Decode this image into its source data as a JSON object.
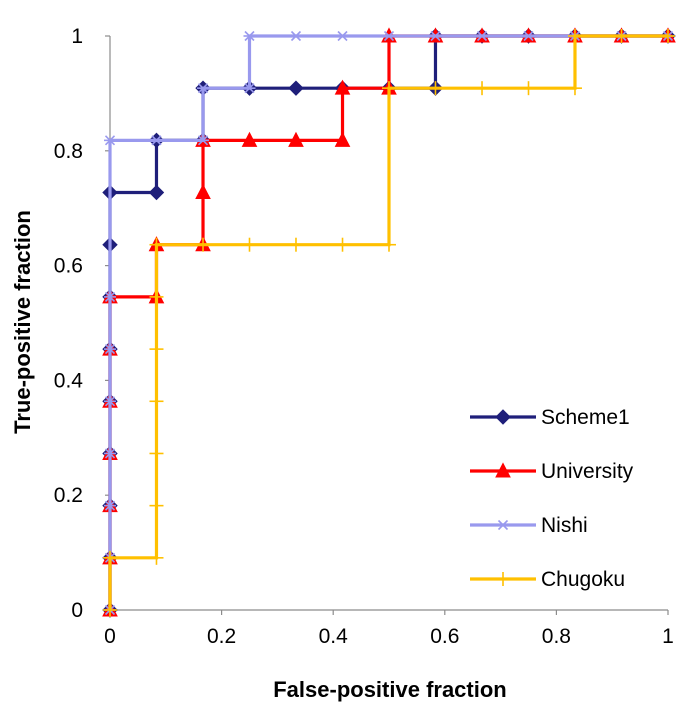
{
  "chart_data": {
    "type": "line",
    "title": "",
    "xlabel": "False-positive fraction",
    "ylabel": "True-positive fraction",
    "xlim": [
      0,
      1
    ],
    "ylim": [
      0,
      1
    ],
    "x_ticks": [
      0,
      0.2,
      0.4,
      0.6,
      0.8,
      1
    ],
    "y_ticks": [
      0,
      0.2,
      0.4,
      0.6,
      0.8,
      1
    ],
    "x_tick_labels": [
      "0",
      "0.2",
      "0.4",
      "0.6",
      "0.8",
      "1"
    ],
    "y_tick_labels": [
      "0",
      "0.2",
      "0.4",
      "0.6",
      "0.8",
      "1"
    ],
    "grid": false,
    "legend_position": "bottom-right",
    "series": [
      {
        "name": "Scheme1",
        "color": "#1f1f7a",
        "marker": "diamond",
        "points": [
          [
            0,
            0
          ],
          [
            0,
            0.0909
          ],
          [
            0,
            0.1818
          ],
          [
            0,
            0.2727
          ],
          [
            0,
            0.3636
          ],
          [
            0,
            0.4545
          ],
          [
            0,
            0.5455
          ],
          [
            0,
            0.6364
          ],
          [
            0,
            0.7273
          ],
          [
            0.0833,
            0.7273
          ],
          [
            0.0833,
            0.8182
          ],
          [
            0.1667,
            0.8182
          ],
          [
            0.1667,
            0.9091
          ],
          [
            0.25,
            0.9091
          ],
          [
            0.3333,
            0.9091
          ],
          [
            0.4167,
            0.9091
          ],
          [
            0.5,
            0.9091
          ],
          [
            0.5833,
            0.9091
          ],
          [
            0.5833,
            1
          ],
          [
            0.6667,
            1
          ],
          [
            0.75,
            1
          ],
          [
            0.8333,
            1
          ],
          [
            0.9167,
            1
          ],
          [
            1,
            1
          ]
        ]
      },
      {
        "name": "University",
        "color": "#ff0000",
        "marker": "triangle",
        "points": [
          [
            0,
            0
          ],
          [
            0,
            0.0909
          ],
          [
            0,
            0.1818
          ],
          [
            0,
            0.2727
          ],
          [
            0,
            0.3636
          ],
          [
            0,
            0.4545
          ],
          [
            0,
            0.5455
          ],
          [
            0.0833,
            0.5455
          ],
          [
            0.0833,
            0.6364
          ],
          [
            0.1667,
            0.6364
          ],
          [
            0.1667,
            0.7273
          ],
          [
            0.1667,
            0.8182
          ],
          [
            0.25,
            0.8182
          ],
          [
            0.3333,
            0.8182
          ],
          [
            0.4167,
            0.8182
          ],
          [
            0.4167,
            0.9091
          ],
          [
            0.5,
            0.9091
          ],
          [
            0.5,
            1
          ],
          [
            0.5833,
            1
          ],
          [
            0.6667,
            1
          ],
          [
            0.75,
            1
          ],
          [
            0.8333,
            1
          ],
          [
            0.9167,
            1
          ],
          [
            1,
            1
          ]
        ]
      },
      {
        "name": "Nishi",
        "color": "#9999ee",
        "marker": "star",
        "points": [
          [
            0,
            0
          ],
          [
            0,
            0.0909
          ],
          [
            0,
            0.1818
          ],
          [
            0,
            0.2727
          ],
          [
            0,
            0.3636
          ],
          [
            0,
            0.4545
          ],
          [
            0,
            0.5455
          ],
          [
            0,
            0.8182
          ],
          [
            0.0833,
            0.8182
          ],
          [
            0.1667,
            0.8182
          ],
          [
            0.1667,
            0.9091
          ],
          [
            0.25,
            0.9091
          ],
          [
            0.25,
            1
          ],
          [
            0.3333,
            1
          ],
          [
            0.4167,
            1
          ],
          [
            0.5,
            1
          ],
          [
            0.5833,
            1
          ],
          [
            0.6667,
            1
          ],
          [
            0.75,
            1
          ],
          [
            0.8333,
            1
          ],
          [
            0.9167,
            1
          ],
          [
            1,
            1
          ]
        ]
      },
      {
        "name": "Chugoku",
        "color": "#ffc000",
        "marker": "plus",
        "points": [
          [
            0,
            0
          ],
          [
            0,
            0.0909
          ],
          [
            0.0833,
            0.0909
          ],
          [
            0.0833,
            0.1818
          ],
          [
            0.0833,
            0.2727
          ],
          [
            0.0833,
            0.3636
          ],
          [
            0.0833,
            0.4545
          ],
          [
            0.0833,
            0.5455
          ],
          [
            0.0833,
            0.6364
          ],
          [
            0.1667,
            0.6364
          ],
          [
            0.25,
            0.6364
          ],
          [
            0.3333,
            0.6364
          ],
          [
            0.4167,
            0.6364
          ],
          [
            0.5,
            0.6364
          ],
          [
            0.5,
            0.9091
          ],
          [
            0.5833,
            0.9091
          ],
          [
            0.6667,
            0.9091
          ],
          [
            0.75,
            0.9091
          ],
          [
            0.8333,
            0.9091
          ],
          [
            0.8333,
            1
          ],
          [
            0.9167,
            1
          ],
          [
            1,
            1
          ]
        ]
      }
    ]
  }
}
